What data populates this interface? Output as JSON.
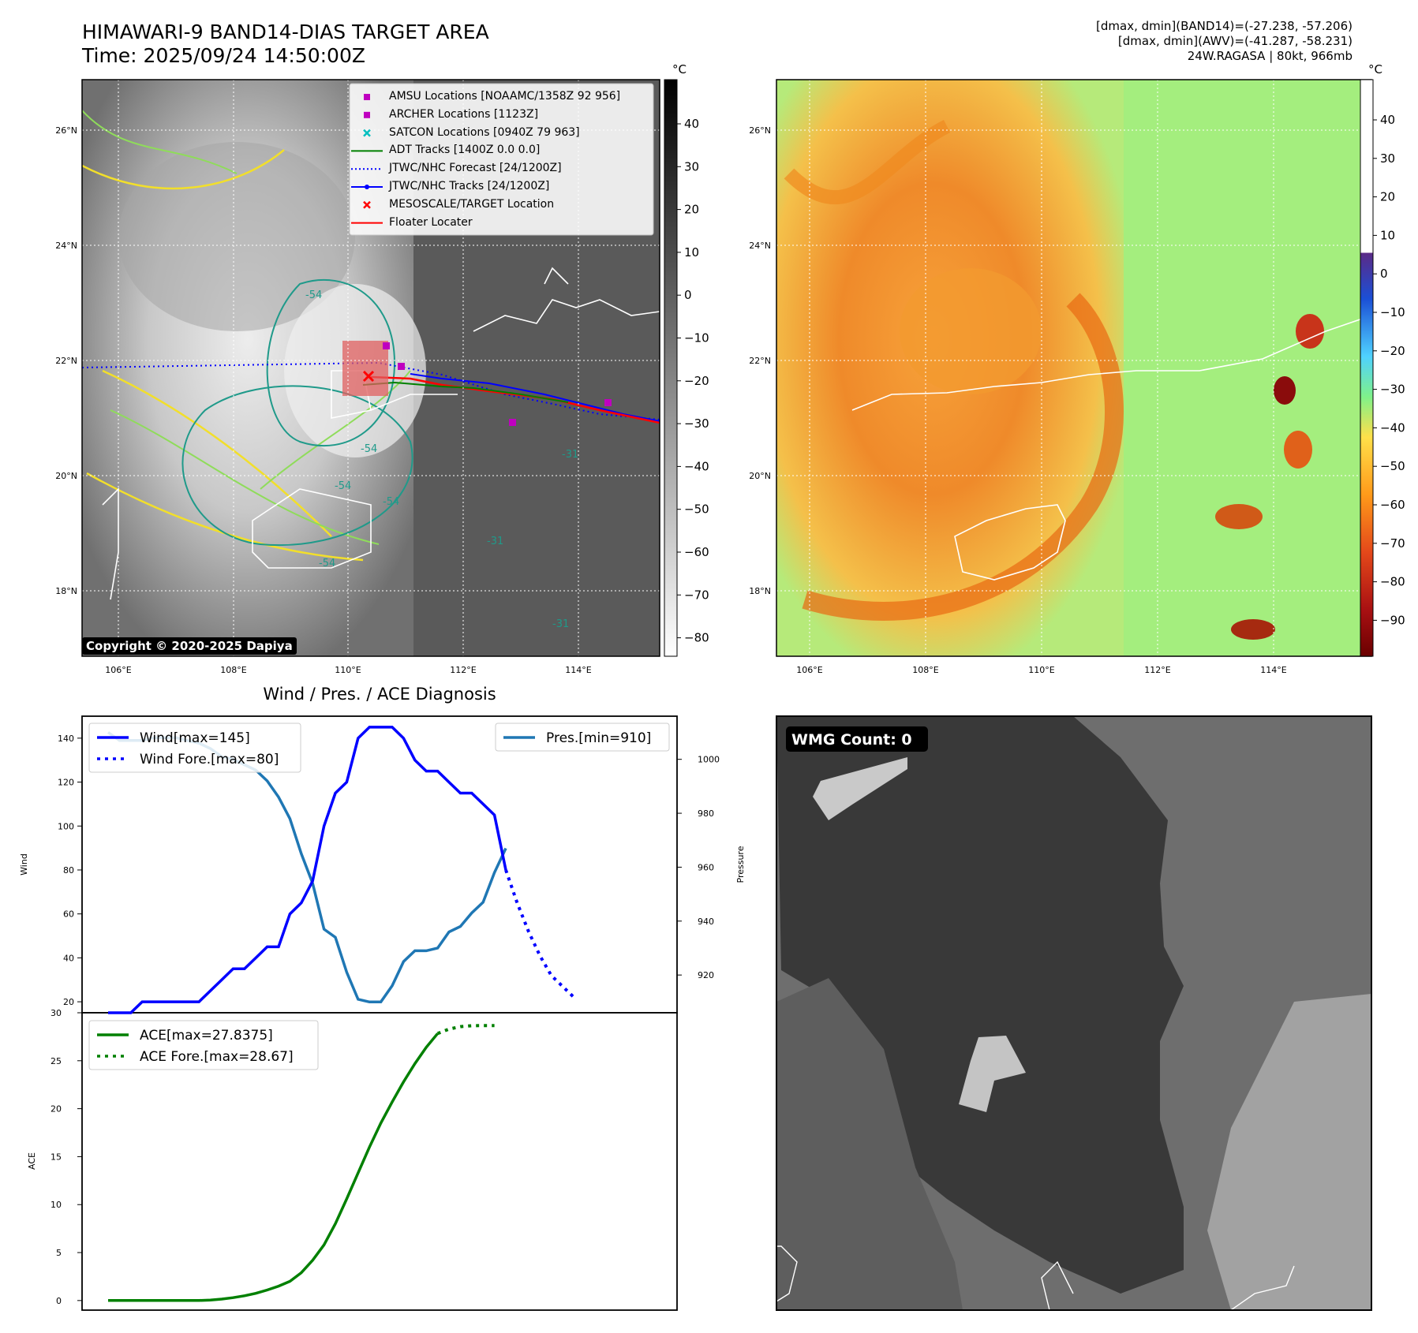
{
  "header": {
    "title_line1": "HIMAWARI-9 BAND14-DIAS TARGET AREA",
    "title_line2": "Time: 2025/09/24 14:50:00Z",
    "right_line1": "[dmax, dmin](BAND14)=(-27.238, -57.206)",
    "right_line2": "[dmax, dmin](AWV)=(-41.287, -58.231)",
    "right_line3": "24W.RAGASA | 80kt, 966mb"
  },
  "map_left": {
    "lat_labels": [
      "26°N",
      "24°N",
      "22°N",
      "20°N",
      "18°N"
    ],
    "lon_labels": [
      "106°E",
      "108°E",
      "110°E",
      "112°E",
      "114°E"
    ],
    "contour_labels": [
      "-54",
      "-54",
      "-54",
      "-54",
      "-54",
      "-31",
      "-31",
      "-31"
    ],
    "copyright": "Copyright © 2020-2025 Dapiya",
    "legend": [
      {
        "label": "AMSU Locations [NOAAMC/1358Z 92 956]",
        "color": "#bf00bf",
        "marker": "square"
      },
      {
        "label": "ARCHER Locations [1123Z]",
        "color": "#bf00bf",
        "marker": "square"
      },
      {
        "label": "SATCON Locations [0940Z 79 963]",
        "color": "#00bfbf",
        "marker": "x"
      },
      {
        "label": "ADT Tracks [1400Z 0.0 0.0]",
        "color": "#008000",
        "marker": "line"
      },
      {
        "label": "JTWC/NHC Forecast [24/1200Z]",
        "color": "#0000ff",
        "marker": "dotted"
      },
      {
        "label": "JTWC/NHC Tracks [24/1200Z]",
        "color": "#0000ff",
        "marker": "line-dot"
      },
      {
        "label": "MESOSCALE/TARGET Location",
        "color": "#ff0000",
        "marker": "x"
      },
      {
        "label": "Floater Locater",
        "color": "#ff0000",
        "marker": "line"
      }
    ],
    "colorbar_unit": "°C",
    "colorbar_ticks": [
      "40",
      "30",
      "20",
      "10",
      "0",
      "−10",
      "−20",
      "−30",
      "−40",
      "−50",
      "−60",
      "−70",
      "−80"
    ]
  },
  "map_right": {
    "lat_labels": [
      "26°N",
      "24°N",
      "22°N",
      "20°N",
      "18°N"
    ],
    "lon_labels": [
      "106°E",
      "108°E",
      "110°E",
      "112°E",
      "114°E"
    ],
    "colorbar_unit": "°C",
    "colorbar_ticks": [
      "40",
      "30",
      "20",
      "10",
      "0",
      "−10",
      "−20",
      "−30",
      "−40",
      "−50",
      "−60",
      "−70",
      "−80",
      "−90"
    ]
  },
  "wmg_panel": {
    "label": "WMG Count: 0"
  },
  "chart_data": [
    {
      "type": "line",
      "title": "Wind / Pres. / ACE Diagnosis",
      "ylabel": "Wind",
      "ylabel_right": "Pressure",
      "ylim": [
        15,
        150
      ],
      "yticks": [
        "140",
        "120",
        "100",
        "80",
        "60",
        "40",
        "20"
      ],
      "y2lim": [
        906,
        1016
      ],
      "y2ticks": [
        "1000",
        "980",
        "960",
        "940",
        "920"
      ],
      "series": [
        {
          "name": "Wind[max=145]",
          "color": "#0000ff",
          "style": "solid",
          "values": [
            15,
            15,
            15,
            20,
            20,
            20,
            20,
            20,
            20,
            25,
            30,
            35,
            35,
            40,
            45,
            45,
            60,
            65,
            75,
            100,
            115,
            120,
            140,
            145,
            145,
            145,
            140,
            130,
            125,
            125,
            120,
            115,
            115,
            110,
            105,
            80
          ]
        },
        {
          "name": "Wind Fore.[max=80]",
          "color": "#0000ff",
          "style": "dotted",
          "values": [
            null,
            null,
            null,
            null,
            null,
            null,
            null,
            null,
            null,
            null,
            null,
            null,
            null,
            null,
            null,
            null,
            null,
            null,
            null,
            null,
            null,
            null,
            null,
            null,
            null,
            null,
            null,
            null,
            null,
            null,
            null,
            null,
            null,
            null,
            null,
            80,
            65,
            52,
            41,
            32,
            27,
            22
          ]
        },
        {
          "name": "Pres.[min=910]",
          "color": "#1f77b4",
          "style": "solid",
          "values": [
            1010,
            1007,
            1007,
            1007,
            1008,
            1008,
            1008,
            1007,
            1006,
            1004,
            1001,
            1000,
            998,
            996,
            992,
            986,
            978,
            965,
            954,
            937,
            934,
            921,
            911,
            910,
            910,
            916,
            925,
            929,
            929,
            930,
            936,
            938,
            943,
            947,
            958,
            967
          ]
        }
      ]
    },
    {
      "type": "line",
      "ylabel": "ACE",
      "ylim": [
        -1,
        30
      ],
      "yticks": [
        "30",
        "25",
        "20",
        "15",
        "10",
        "5",
        "0"
      ],
      "series": [
        {
          "name": "ACE[max=27.8375]",
          "color": "#008000",
          "style": "solid",
          "values": [
            0,
            0,
            0,
            0,
            0,
            0,
            0,
            0,
            0,
            0.05,
            0.15,
            0.3,
            0.5,
            0.75,
            1.1,
            1.5,
            2.0,
            2.9,
            4.2,
            5.8,
            8.0,
            10.6,
            13.3,
            16.0,
            18.5,
            20.7,
            22.8,
            24.7,
            26.4,
            27.84
          ]
        },
        {
          "name": "ACE Fore.[max=28.67]",
          "color": "#008000",
          "style": "dotted",
          "values": [
            null,
            null,
            null,
            null,
            null,
            null,
            null,
            null,
            null,
            null,
            null,
            null,
            null,
            null,
            null,
            null,
            null,
            null,
            null,
            null,
            null,
            null,
            null,
            null,
            null,
            null,
            null,
            null,
            null,
            27.84,
            28.3,
            28.55,
            28.65,
            28.67,
            28.67
          ]
        }
      ]
    }
  ]
}
